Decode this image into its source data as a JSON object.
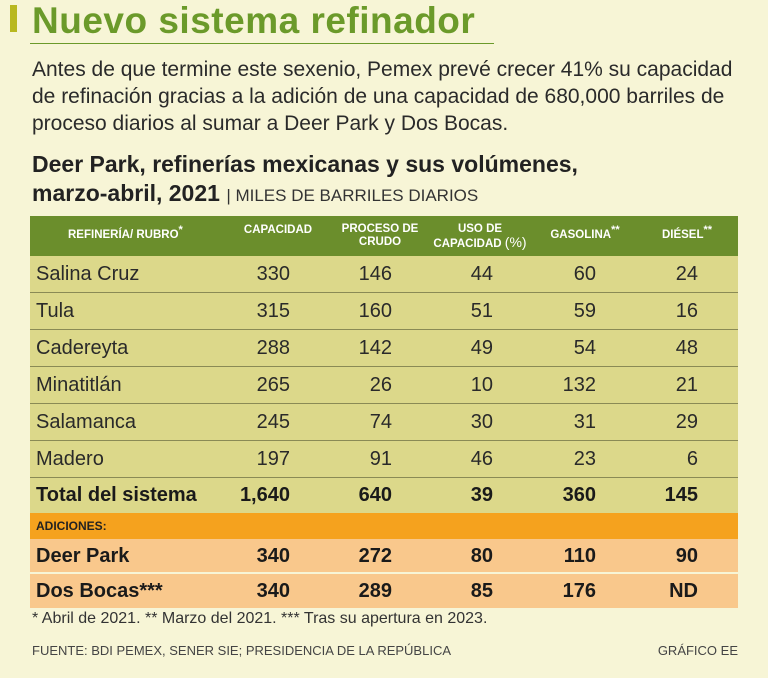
{
  "title": "Nuevo sistema refinador",
  "intro": "Antes de que termine este sexenio, Pemex prevé crecer 41% su capacidad de refinación gracias a la adición de una capacidad de 680,000 barriles de proceso diarios al sumar a Deer Park y Dos Bocas.",
  "subtitle_line1": "Deer Park, refinerías mexicanas y sus volúmenes,",
  "subtitle_line2": "marzo-abril, 2021",
  "subtitle_unit": "| MILES DE BARRILES DIARIOS",
  "colors": {
    "title": "#6b9a2a",
    "header": "#6b8e2c",
    "rows": "#dcd88a",
    "additions_band": "#f5a21e",
    "additions_rows": "#f9c88c"
  },
  "chart_data": {
    "type": "table",
    "headers": {
      "refineria": "REFINERÍA/   RUBRO",
      "refineria_mark": "*",
      "capacidad": "CAPACIDAD",
      "proceso_l1": "PROCESO DE",
      "proceso_l2": "CRUDO",
      "uso_l1": "USO DE",
      "uso_l2": "CAPACIDAD",
      "uso_unit": "(%)",
      "gasolina": "GASOLINA",
      "gasolina_mark": "**",
      "diesel": "DIÉSEL",
      "diesel_mark": "**"
    },
    "rows": [
      {
        "name": "Salina Cruz",
        "capacidad": "330",
        "proceso": "146",
        "uso": "44",
        "gasolina": "60",
        "diesel": "24"
      },
      {
        "name": "Tula",
        "capacidad": "315",
        "proceso": "160",
        "uso": "51",
        "gasolina": "59",
        "diesel": "16"
      },
      {
        "name": "Cadereyta",
        "capacidad": "288",
        "proceso": "142",
        "uso": "49",
        "gasolina": "54",
        "diesel": "48"
      },
      {
        "name": "Minatitlán",
        "capacidad": "265",
        "proceso": "26",
        "uso": "10",
        "gasolina": "132",
        "diesel": "21"
      },
      {
        "name": "Salamanca",
        "capacidad": "245",
        "proceso": "74",
        "uso": "30",
        "gasolina": "31",
        "diesel": "29"
      },
      {
        "name": "Madero",
        "capacidad": "197",
        "proceso": "91",
        "uso": "46",
        "gasolina": "23",
        "diesel": "6"
      }
    ],
    "total": {
      "name": "Total del sistema",
      "capacidad": "1,640",
      "proceso": "640",
      "uso": "39",
      "gasolina": "360",
      "diesel": "145"
    },
    "additions_label": "ADICIONES:",
    "additions": [
      {
        "name": "Deer Park",
        "capacidad": "340",
        "proceso": "272",
        "uso": "80",
        "gasolina": "110",
        "diesel": "90"
      },
      {
        "name": "Dos Bocas***",
        "capacidad": "340",
        "proceso": "289",
        "uso": "85",
        "gasolina": "176",
        "diesel": "ND"
      }
    ]
  },
  "footnote": "* Abril de 2021. ** Marzo del 2021. *** Tras su apertura en 2023.",
  "source": "FUENTE: BDI PEMEX, SENER SIE; PRESIDENCIA DE LA REPÚBLICA",
  "credit": "GRÁFICO EE"
}
